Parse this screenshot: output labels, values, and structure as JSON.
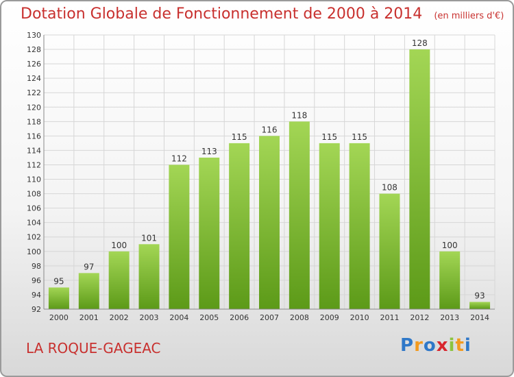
{
  "header": {
    "title": "Dotation Globale de Fonctionnement de 2000 à 2014",
    "unit": "(en milliers d'€)"
  },
  "footer": {
    "town": "LA ROQUE-GAGEAC",
    "logo": "Proxiti"
  },
  "chart_data": {
    "type": "bar",
    "title": "Dotation Globale de Fonctionnement de 2000 à 2014",
    "subtitle": "(en milliers d'€)",
    "categories": [
      "2000",
      "2001",
      "2002",
      "2003",
      "2004",
      "2005",
      "2006",
      "2007",
      "2008",
      "2009",
      "2010",
      "2011",
      "2012",
      "2013",
      "2014"
    ],
    "values": [
      95,
      97,
      100,
      101,
      112,
      113,
      115,
      116,
      118,
      115,
      115,
      108,
      128,
      100,
      93
    ],
    "ylim": [
      92,
      130
    ],
    "yticks": [
      92,
      94,
      96,
      98,
      100,
      102,
      104,
      106,
      108,
      110,
      112,
      114,
      116,
      118,
      120,
      122,
      124,
      126,
      128,
      130
    ],
    "grid": true,
    "colors": {
      "bar_top": "#9fd14f",
      "bar_bottom": "#5f9e1a",
      "grid": "#d6d6d6",
      "text": "#333333"
    }
  }
}
